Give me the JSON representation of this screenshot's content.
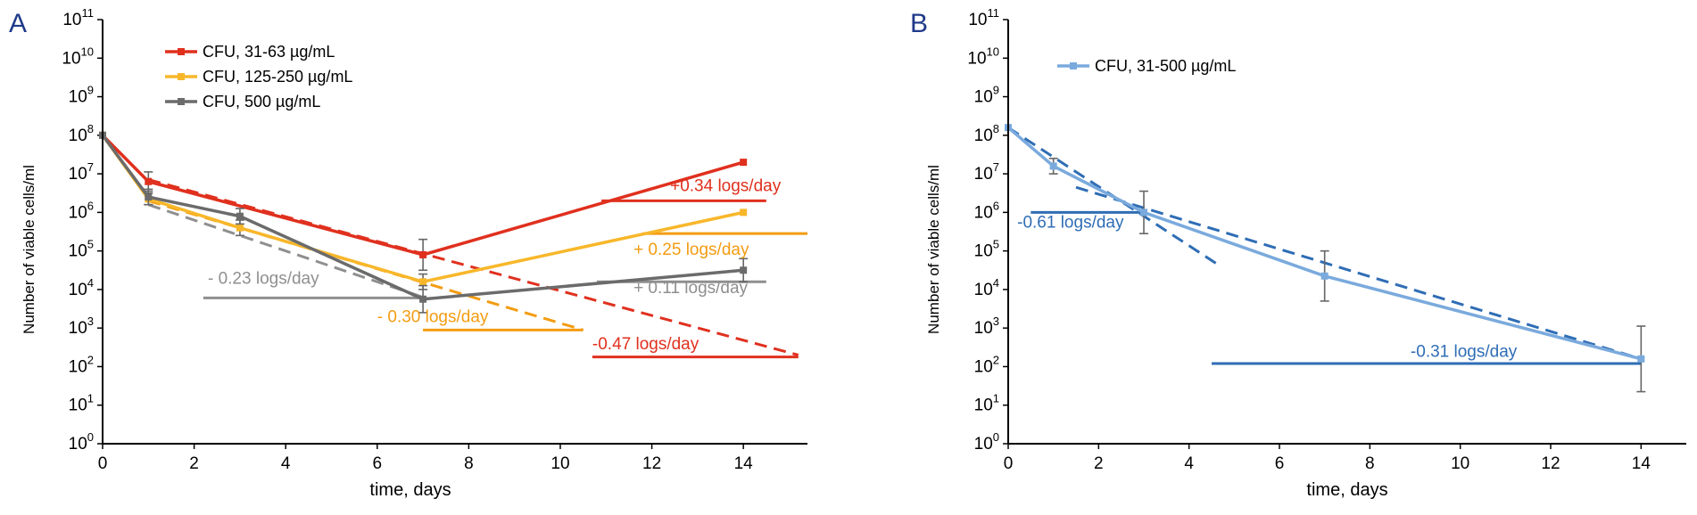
{
  "colors": {
    "red": "#e0301e",
    "yellow": "#f8b72a",
    "gray": "#8f8f8f",
    "darkgray": "#6b6b6b",
    "orange": "#f39c12",
    "lightblue": "#7aaadd",
    "blue": "#2f6db5",
    "panel_letter": "#1f3a8a",
    "axis": "#000000"
  },
  "chart_data": [
    {
      "panel": "A",
      "type": "line",
      "yscale": "log",
      "xlabel": "time, days",
      "ylabel": "Number of viable cells/ml",
      "xlim": [
        0,
        15.4
      ],
      "ylim_exponent": [
        0,
        11
      ],
      "xticks": [
        0,
        2,
        4,
        6,
        8,
        10,
        12,
        14
      ],
      "ytick_exponents": [
        0,
        1,
        2,
        3,
        4,
        5,
        6,
        7,
        8,
        9,
        10,
        11
      ],
      "series": [
        {
          "name": "CFU, 31-63 µg/mL",
          "color_key": "red",
          "x": [
            0,
            1,
            7,
            14
          ],
          "log10_y": [
            8,
            6.8,
            4.9,
            7.3
          ],
          "err": [
            0,
            0.25,
            0.4,
            0
          ]
        },
        {
          "name": "CFU, 125-250 µg/mL",
          "color_key": "yellow",
          "x": [
            0,
            1,
            3,
            7,
            14
          ],
          "log10_y": [
            8,
            6.35,
            5.6,
            4.2,
            6
          ],
          "err": [
            0,
            0.15,
            0.2,
            0.2,
            0
          ]
        },
        {
          "name": "CFU, 500 µg/mL",
          "color_key": "darkgray",
          "x": [
            0,
            1,
            3,
            7,
            14
          ],
          "log10_y": [
            8,
            6.4,
            5.9,
            3.75,
            4.5
          ],
          "err": [
            0,
            0.2,
            0.2,
            0.35,
            0.3
          ]
        }
      ],
      "fit_lines": [
        {
          "color_key": "red",
          "dashed": true,
          "x": [
            1,
            15.2
          ],
          "log10_y": [
            6.85,
            2.3
          ]
        },
        {
          "color_key": "red",
          "dashed": false,
          "x": [
            10.7,
            15.2
          ],
          "log10_y": [
            2.25,
            2.25
          ]
        },
        {
          "color_key": "red",
          "dashed": false,
          "x": [
            10.9,
            14.5
          ],
          "log10_y": [
            6.3,
            6.3
          ]
        },
        {
          "color_key": "orange",
          "dashed": true,
          "x": [
            1,
            10.5
          ],
          "log10_y": [
            6.3,
            2.95
          ]
        },
        {
          "color_key": "orange",
          "dashed": false,
          "x": [
            7,
            10.5
          ],
          "log10_y": [
            2.95,
            2.95
          ]
        },
        {
          "color_key": "orange",
          "dashed": false,
          "x": [
            11.8,
            15.4
          ],
          "log10_y": [
            5.45,
            5.45
          ]
        },
        {
          "color_key": "gray",
          "dashed": true,
          "x": [
            1,
            7
          ],
          "log10_y": [
            6.2,
            3.8
          ]
        },
        {
          "color_key": "gray",
          "dashed": false,
          "x": [
            2.2,
            7
          ],
          "log10_y": [
            3.78,
            3.78
          ]
        },
        {
          "color_key": "gray",
          "dashed": false,
          "x": [
            10.8,
            14.5
          ],
          "log10_y": [
            4.2,
            4.2
          ]
        }
      ],
      "annotations": [
        {
          "text": "+0.34 logs/day",
          "color_key": "red",
          "x": 12.4,
          "log10_y": 6.55
        },
        {
          "text": "+ 0.25 logs/day",
          "color_key": "orange",
          "x": 11.6,
          "log10_y": 4.9
        },
        {
          "text": "+ 0.11 logs/day",
          "color_key": "gray",
          "x": 11.6,
          "log10_y": 3.9
        },
        {
          "text": "- 0.23 logs/day",
          "color_key": "gray",
          "x": 2.3,
          "log10_y": 4.15
        },
        {
          "text": "- 0.30 logs/day",
          "color_key": "orange",
          "x": 6.0,
          "log10_y": 3.15
        },
        {
          "text": "-0.47 logs/day",
          "color_key": "red",
          "x": 10.7,
          "log10_y": 2.45
        }
      ],
      "legend_position": "top-left"
    },
    {
      "panel": "B",
      "type": "line",
      "yscale": "log",
      "xlabel": "time, days",
      "ylabel": "Number of viable cells/ml",
      "xlim": [
        0,
        15
      ],
      "ylim_exponent": [
        0,
        11
      ],
      "xticks": [
        0,
        2,
        4,
        6,
        8,
        10,
        12,
        14
      ],
      "ytick_exponents": [
        0,
        1,
        2,
        3,
        4,
        5,
        6,
        7,
        8,
        9,
        10,
        11
      ],
      "series": [
        {
          "name": "CFU, 31-500 µg/mL",
          "color_key": "lightblue",
          "x": [
            0,
            1,
            3,
            7,
            14
          ],
          "log10_y": [
            8.2,
            7.2,
            6,
            4.35,
            2.2
          ],
          "err": [
            0,
            0.2,
            0.55,
            0.65,
            0.85
          ]
        }
      ],
      "fit_lines": [
        {
          "color_key": "blue",
          "dashed": true,
          "x": [
            0,
            4.7
          ],
          "log10_y": [
            8.2,
            4.6
          ]
        },
        {
          "color_key": "blue",
          "dashed": true,
          "x": [
            1.5,
            14
          ],
          "log10_y": [
            6.65,
            2.2
          ]
        },
        {
          "color_key": "blue",
          "dashed": false,
          "x": [
            0.5,
            3
          ],
          "log10_y": [
            6,
            6
          ]
        },
        {
          "color_key": "blue",
          "dashed": false,
          "x": [
            4.5,
            14
          ],
          "log10_y": [
            2.08,
            2.08
          ]
        }
      ],
      "annotations": [
        {
          "text": "-0.61 logs/day",
          "color_key": "blue",
          "x": 0.2,
          "log10_y": 5.6
        },
        {
          "text": "-0.31 logs/day",
          "color_key": "blue",
          "x": 8.9,
          "log10_y": 2.25
        }
      ],
      "legend_position": "top-left"
    }
  ]
}
